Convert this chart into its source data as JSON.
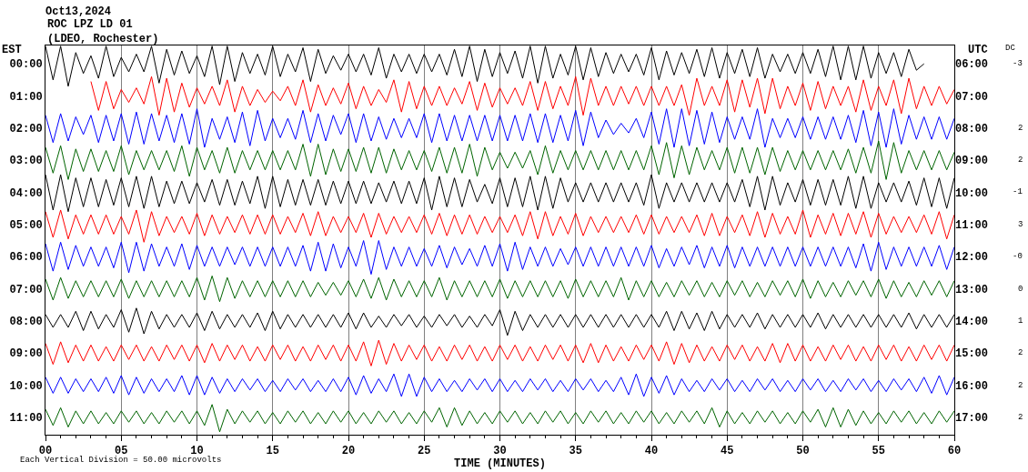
{
  "chart_data": {
    "type": "line",
    "title": "Oct13,2024",
    "subtitle": "ROC LPZ LD 01\n(LDEO, Rochester)",
    "xlabel": "TIME (MINUTES)",
    "ylabel": "EST",
    "y2label": "UTC",
    "annotations": [
      "Each Vertical Division = 50.00 microvolts",
      "DC",
      "-3",
      "2",
      "2",
      "-1",
      "3",
      "-0",
      "0",
      "1",
      "2",
      "2",
      "2"
    ],
    "x": [
      0,
      0.5,
      1,
      1.5,
      2,
      2.5,
      3,
      3.5,
      4,
      4.5,
      5,
      5.5,
      6,
      6.5,
      7,
      7.5,
      8,
      8.5,
      9,
      9.5,
      10,
      10.5,
      11,
      11.5,
      12,
      12.5,
      13,
      13.5,
      14,
      14.5,
      15,
      15.5,
      16,
      16.5,
      17,
      17.5,
      18,
      18.5,
      19,
      19.5,
      20,
      20.5,
      21,
      21.5,
      22,
      22.5,
      23,
      23.5,
      24,
      24.5,
      25,
      25.5,
      26,
      26.5,
      27,
      27.5,
      28,
      28.5,
      29,
      29.5,
      30,
      30.5,
      31,
      31.5,
      32,
      32.5,
      33,
      33.5,
      34,
      34.5,
      35,
      35.5,
      36,
      36.5,
      37,
      37.5,
      38,
      38.5,
      39,
      39.5,
      40,
      40.5,
      41,
      41.5,
      42,
      42.5,
      43,
      43.5,
      44,
      44.5,
      45,
      45.5,
      46,
      46.5,
      47,
      47.5,
      48,
      48.5,
      49,
      49.5,
      50,
      50.5,
      51,
      51.5,
      52,
      52.5,
      53,
      53.5,
      54,
      54.5,
      55,
      55.5,
      56,
      56.5,
      57,
      57.5,
      58,
      58.5,
      59,
      59.5,
      60
    ],
    "series": [
      {
        "color": "#000000",
        "values": [
          -0.55,
          0.5,
          -0.55,
          0.7,
          -0.35,
          0.3,
          -0.25,
          0.45,
          -0.55,
          0.4,
          -0.2,
          0.25,
          -0.3,
          0.25,
          -0.55,
          0.6,
          -0.45,
          0.35,
          -0.4,
          0.3,
          -0.25,
          0.4,
          -0.55,
          0.65,
          -0.55,
          0.55,
          -0.35,
          0.3,
          -0.3,
          0.35,
          -0.55,
          0.4,
          -0.3,
          0.25,
          -0.5,
          0.55,
          -0.45,
          0.3,
          -0.25,
          0.2,
          -0.3,
          0.25,
          -0.3,
          0.35,
          -0.5,
          0.45,
          -0.3,
          0.25,
          -0.3,
          0.3,
          -0.3,
          0.25,
          -0.3,
          0.35,
          -0.45,
          0.4,
          -0.55,
          0.55,
          -0.45,
          0.4,
          -0.35,
          0.3,
          -0.4,
          0.45,
          -0.55,
          0.6,
          -0.55,
          0.45,
          -0.3,
          0.35,
          -0.55,
          0.5,
          -0.5,
          0.4,
          -0.35,
          0.3,
          -0.3,
          0.25,
          -0.3,
          0.35,
          -0.5,
          0.5,
          -0.4,
          0.35,
          -0.35,
          0.3,
          -0.45,
          0.4,
          -0.5,
          0.45,
          -0.35,
          0.3,
          -0.45,
          0.4,
          -0.5,
          0.45,
          -0.3,
          0.25,
          -0.3,
          0.3,
          -0.35,
          0.3,
          -0.45,
          0.4,
          -0.55,
          0.5,
          -0.55,
          0.5,
          -0.55,
          0.45,
          -0.35,
          0.3,
          -0.35,
          0.4,
          -0.45,
          0.2,
          0.0,
          null,
          null,
          null,
          null
        ]
      },
      {
        "color": "#ff0000",
        "values": [
          null,
          null,
          null,
          null,
          null,
          null,
          0.55,
          1.45,
          0.55,
          1.4,
          0.8,
          1.2,
          0.75,
          1.25,
          0.4,
          1.6,
          0.45,
          1.5,
          0.6,
          1.35,
          0.75,
          1.25,
          0.7,
          1.3,
          0.5,
          1.5,
          0.7,
          1.3,
          0.8,
          1.2,
          0.85,
          1.15,
          0.7,
          1.3,
          0.5,
          1.5,
          0.65,
          1.3,
          0.75,
          1.25,
          0.6,
          1.4,
          0.7,
          1.3,
          0.8,
          1.2,
          0.5,
          1.5,
          0.55,
          1.4,
          0.7,
          1.3,
          0.7,
          1.3,
          0.75,
          1.25,
          0.55,
          1.45,
          0.6,
          1.35,
          0.75,
          1.25,
          0.75,
          1.3,
          0.55,
          1.45,
          0.55,
          1.4,
          0.7,
          1.3,
          0.4,
          1.6,
          0.45,
          1.3,
          0.7,
          1.3,
          0.7,
          1.25,
          0.7,
          1.3,
          0.7,
          1.3,
          0.7,
          1.3,
          0.65,
          1.6,
          0.45,
          1.3,
          0.7,
          1.3,
          0.5,
          1.5,
          0.5,
          1.35,
          0.45,
          1.55,
          0.45,
          1.4,
          0.7,
          1.3,
          0.6,
          1.45,
          0.55,
          1.4,
          0.7,
          1.3,
          0.7,
          1.5,
          0.5,
          1.45,
          0.7,
          1.3,
          0.5,
          1.55,
          0.45,
          1.4,
          0.7,
          1.3,
          0.7,
          1.25,
          0.8
        ]
      },
      {
        "color": "#0000ff",
        "values": [
          1.6,
          2.45,
          1.55,
          2.4,
          1.65,
          2.2,
          1.6,
          2.45,
          1.6,
          2.4,
          1.55,
          2.5,
          1.5,
          2.5,
          1.55,
          2.4,
          1.6,
          2.45,
          1.55,
          2.5,
          1.4,
          2.6,
          1.7,
          2.35,
          1.65,
          2.45,
          1.5,
          2.55,
          1.45,
          2.4,
          1.7,
          2.3,
          1.7,
          2.35,
          1.45,
          2.45,
          1.55,
          2.4,
          1.6,
          2.2,
          1.55,
          2.45,
          1.55,
          2.4,
          1.65,
          2.35,
          1.7,
          2.3,
          1.7,
          2.3,
          1.55,
          2.45,
          1.55,
          2.4,
          1.6,
          2.4,
          1.6,
          2.4,
          1.6,
          2.4,
          1.6,
          2.4,
          1.6,
          2.4,
          1.55,
          2.45,
          1.55,
          2.45,
          1.6,
          2.4,
          1.45,
          2.55,
          1.5,
          2.3,
          1.75,
          2.2,
          1.85,
          2.15,
          1.7,
          2.3,
          1.5,
          2.5,
          1.4,
          2.6,
          1.4,
          2.55,
          1.45,
          2.5,
          1.5,
          2.45,
          1.65,
          2.35,
          1.65,
          2.35,
          1.4,
          2.6,
          1.7,
          2.3,
          1.7,
          2.3,
          1.65,
          2.35,
          1.65,
          2.35,
          1.65,
          2.35,
          1.6,
          2.45,
          1.45,
          2.55,
          1.5,
          2.6,
          1.4,
          2.5,
          1.6,
          2.35,
          1.65,
          2.35,
          1.65,
          2.35,
          1.7
        ]
      },
      {
        "color": "#006400",
        "values": [
          2.6,
          3.4,
          2.55,
          3.6,
          2.65,
          3.35,
          2.65,
          3.35,
          2.7,
          3.35,
          2.55,
          3.45,
          2.7,
          3.3,
          2.7,
          3.3,
          2.7,
          3.35,
          2.55,
          3.5,
          2.6,
          3.3,
          2.7,
          3.4,
          2.6,
          3.4,
          2.7,
          3.3,
          2.7,
          3.3,
          2.7,
          3.3,
          2.7,
          3.3,
          2.5,
          3.5,
          2.5,
          3.45,
          2.65,
          3.35,
          2.65,
          3.35,
          2.6,
          3.4,
          2.6,
          3.4,
          2.65,
          3.3,
          2.7,
          3.3,
          2.7,
          3.35,
          2.6,
          3.4,
          2.6,
          3.4,
          2.5,
          3.5,
          2.6,
          3.3,
          2.75,
          3.25,
          2.75,
          3.25,
          2.7,
          3.45,
          2.55,
          3.4,
          2.7,
          3.3,
          2.7,
          3.3,
          2.7,
          3.3,
          2.7,
          3.3,
          2.7,
          3.3,
          2.7,
          3.3,
          2.55,
          3.45,
          2.45,
          3.55,
          2.55,
          3.45,
          2.6,
          3.3,
          2.7,
          3.3,
          2.6,
          3.4,
          2.6,
          3.4,
          2.6,
          3.45,
          2.6,
          3.35,
          2.7,
          3.3,
          2.7,
          3.3,
          2.7,
          3.3,
          2.7,
          3.3,
          2.65,
          3.4,
          2.6,
          3.4,
          2.4,
          3.6,
          2.45,
          3.4,
          2.7,
          3.3,
          2.7,
          3.3,
          2.7,
          3.3,
          2.75
        ]
      },
      {
        "color": "#000000",
        "values": [
          3.45,
          4.55,
          3.45,
          4.6,
          3.55,
          4.45,
          3.55,
          4.45,
          3.6,
          4.4,
          3.55,
          4.45,
          3.5,
          4.5,
          3.5,
          4.45,
          3.65,
          4.35,
          3.65,
          4.35,
          3.7,
          4.3,
          3.6,
          4.4,
          3.6,
          4.4,
          3.65,
          4.35,
          3.5,
          4.5,
          3.5,
          4.45,
          3.6,
          4.4,
          3.6,
          4.4,
          3.6,
          4.4,
          3.65,
          4.35,
          3.65,
          4.35,
          3.65,
          4.35,
          3.7,
          4.3,
          3.65,
          4.35,
          3.65,
          4.35,
          3.55,
          4.55,
          3.5,
          4.45,
          3.55,
          4.45,
          3.6,
          4.3,
          3.75,
          4.35,
          3.55,
          4.45,
          3.55,
          4.45,
          3.5,
          4.55,
          3.5,
          4.5,
          3.55,
          4.3,
          3.7,
          4.3,
          3.7,
          4.3,
          3.7,
          4.3,
          3.7,
          4.3,
          3.7,
          4.4,
          3.45,
          4.5,
          3.7,
          4.3,
          3.7,
          4.3,
          3.7,
          4.3,
          3.7,
          4.3,
          3.7,
          4.3,
          3.6,
          4.45,
          3.5,
          4.55,
          3.5,
          4.4,
          3.7,
          4.3,
          3.6,
          4.4,
          3.6,
          4.4,
          3.6,
          4.4,
          3.5,
          4.5,
          3.5,
          4.5,
          3.7,
          4.3,
          3.7,
          4.3,
          3.65,
          4.4,
          3.55,
          4.45,
          3.55,
          4.5,
          3.55
        ]
      },
      {
        "color": "#ff0000",
        "values": [
          4.6,
          5.4,
          4.55,
          5.45,
          4.7,
          5.3,
          4.7,
          5.3,
          4.7,
          5.3,
          4.75,
          5.3,
          4.55,
          5.55,
          4.6,
          5.35,
          4.75,
          5.25,
          4.75,
          5.3,
          4.65,
          5.35,
          4.7,
          5.3,
          4.75,
          5.25,
          4.7,
          5.3,
          4.7,
          5.3,
          4.7,
          5.3,
          4.75,
          5.25,
          4.65,
          5.35,
          4.6,
          5.35,
          4.75,
          5.25,
          4.75,
          5.25,
          4.65,
          5.4,
          4.65,
          5.3,
          4.75,
          5.25,
          4.75,
          5.25,
          4.7,
          5.3,
          4.65,
          5.35,
          4.7,
          5.3,
          4.7,
          5.3,
          4.75,
          5.25,
          4.75,
          5.25,
          4.7,
          5.35,
          4.6,
          5.45,
          4.6,
          5.35,
          4.75,
          5.3,
          4.65,
          5.35,
          4.75,
          5.25,
          4.75,
          5.25,
          4.75,
          5.25,
          4.7,
          5.3,
          4.7,
          5.3,
          4.75,
          5.25,
          4.75,
          5.25,
          4.7,
          5.35,
          4.65,
          5.35,
          4.75,
          5.25,
          4.7,
          5.35,
          4.6,
          5.4,
          4.65,
          5.3,
          4.75,
          5.3,
          4.55,
          5.4,
          4.7,
          5.3,
          4.65,
          5.35,
          4.65,
          5.3,
          4.6,
          5.4,
          4.65,
          5.3,
          4.75,
          5.25,
          4.75,
          5.25,
          4.7,
          5.3,
          4.6,
          5.45,
          4.7
        ]
      },
      {
        "color": "#0000ff",
        "values": [
          5.6,
          6.45,
          5.55,
          6.4,
          5.65,
          6.3,
          5.7,
          6.3,
          5.7,
          6.35,
          5.55,
          6.5,
          5.55,
          6.45,
          5.6,
          6.3,
          5.7,
          6.3,
          5.6,
          6.4,
          5.65,
          6.3,
          5.7,
          6.3,
          5.7,
          6.25,
          5.7,
          6.3,
          5.7,
          6.3,
          5.7,
          6.3,
          5.7,
          6.3,
          5.65,
          6.45,
          5.55,
          6.45,
          5.6,
          6.35,
          5.7,
          6.3,
          5.5,
          6.55,
          5.5,
          6.4,
          5.7,
          6.3,
          5.7,
          6.3,
          5.75,
          6.3,
          5.65,
          6.35,
          5.7,
          6.25,
          5.75,
          6.3,
          5.65,
          6.3,
          5.6,
          6.45,
          5.55,
          6.4,
          5.7,
          6.3,
          5.7,
          6.3,
          5.75,
          6.25,
          5.7,
          6.3,
          5.7,
          6.3,
          5.7,
          6.3,
          5.7,
          6.3,
          5.7,
          6.3,
          5.65,
          6.35,
          5.75,
          6.3,
          5.7,
          6.25,
          5.65,
          6.35,
          5.7,
          6.3,
          5.65,
          6.35,
          5.7,
          6.3,
          5.7,
          6.3,
          5.7,
          6.3,
          5.7,
          6.3,
          5.7,
          6.3,
          5.7,
          6.3,
          5.7,
          6.3,
          5.7,
          6.35,
          5.6,
          6.45,
          5.55,
          6.4,
          5.7,
          6.3,
          5.7,
          6.3,
          5.7,
          6.3,
          5.65,
          6.4,
          5.7
        ]
      },
      {
        "color": "#006400",
        "values": [
          6.7,
          7.35,
          6.65,
          7.3,
          6.75,
          7.25,
          6.75,
          7.25,
          6.75,
          7.25,
          6.7,
          7.3,
          6.75,
          7.25,
          6.75,
          7.25,
          6.75,
          7.25,
          6.75,
          7.25,
          6.65,
          7.35,
          6.6,
          7.4,
          6.65,
          7.3,
          6.75,
          7.25,
          6.75,
          7.25,
          6.75,
          7.25,
          6.75,
          7.25,
          6.75,
          7.25,
          6.8,
          7.2,
          6.8,
          7.2,
          6.75,
          7.25,
          6.7,
          7.3,
          6.65,
          7.35,
          6.7,
          7.25,
          6.75,
          7.25,
          6.75,
          7.25,
          6.65,
          7.35,
          6.75,
          7.25,
          6.75,
          7.25,
          6.75,
          7.25,
          6.7,
          7.3,
          6.75,
          7.25,
          6.75,
          7.25,
          6.75,
          7.25,
          6.75,
          7.3,
          6.7,
          7.25,
          6.75,
          7.25,
          6.75,
          7.25,
          6.65,
          7.35,
          6.75,
          7.25,
          6.75,
          7.25,
          6.8,
          7.25,
          6.75,
          7.2,
          6.75,
          7.25,
          6.8,
          7.25,
          6.75,
          7.2,
          6.75,
          7.25,
          6.8,
          7.25,
          6.75,
          7.2,
          6.75,
          7.25,
          6.7,
          7.3,
          6.75,
          7.25,
          6.8,
          7.25,
          6.75,
          7.2,
          6.75,
          7.25,
          6.7,
          7.3,
          6.75,
          7.25,
          6.8,
          7.25,
          6.75,
          7.2,
          6.75,
          7.25,
          6.75
        ]
      },
      {
        "color": "#000000",
        "values": [
          7.8,
          8.2,
          7.8,
          8.2,
          7.7,
          8.3,
          7.7,
          8.25,
          7.8,
          8.2,
          7.65,
          8.35,
          7.6,
          8.4,
          7.7,
          8.25,
          7.8,
          8.2,
          7.8,
          8.2,
          7.75,
          8.3,
          7.7,
          8.25,
          7.8,
          8.2,
          7.8,
          8.2,
          7.75,
          8.3,
          7.7,
          8.25,
          7.8,
          8.2,
          7.8,
          8.2,
          7.8,
          8.2,
          7.8,
          8.2,
          7.75,
          8.25,
          7.75,
          8.2,
          7.85,
          8.2,
          7.8,
          8.15,
          7.8,
          8.2,
          7.85,
          8.2,
          7.8,
          8.15,
          7.8,
          8.2,
          7.85,
          8.2,
          7.8,
          8.15,
          7.65,
          8.45,
          7.7,
          8.3,
          7.8,
          8.2,
          7.8,
          8.2,
          7.8,
          8.2,
          7.8,
          8.2,
          7.8,
          8.2,
          7.8,
          8.2,
          7.8,
          8.2,
          7.8,
          8.2,
          7.8,
          8.2,
          7.7,
          8.3,
          7.7,
          8.25,
          7.75,
          8.3,
          7.7,
          8.25,
          7.8,
          8.2,
          7.8,
          8.2,
          7.75,
          8.25,
          7.8,
          8.2,
          7.8,
          8.2,
          7.8,
          8.2,
          7.75,
          8.25,
          7.8,
          8.2,
          7.8,
          8.2,
          7.8,
          8.2,
          7.8,
          8.2,
          7.8,
          8.2,
          7.75,
          8.25,
          7.8,
          8.2,
          7.8,
          8.2,
          7.8
        ]
      },
      {
        "color": "#ff0000",
        "values": [
          8.7,
          9.35,
          8.65,
          9.3,
          8.75,
          9.25,
          8.75,
          9.25,
          8.8,
          9.25,
          8.75,
          9.2,
          8.75,
          9.25,
          8.8,
          9.25,
          8.75,
          9.2,
          8.75,
          9.25,
          8.75,
          9.3,
          8.7,
          9.25,
          8.75,
          9.2,
          8.75,
          9.25,
          8.8,
          9.25,
          8.75,
          9.2,
          8.75,
          9.25,
          8.8,
          9.25,
          8.75,
          9.2,
          8.75,
          9.25,
          8.75,
          9.25,
          8.65,
          9.4,
          8.6,
          9.35,
          8.7,
          9.25,
          8.75,
          9.2,
          8.75,
          9.25,
          8.8,
          9.25,
          8.75,
          9.2,
          8.75,
          9.25,
          8.8,
          9.25,
          8.75,
          9.2,
          8.75,
          9.25,
          8.8,
          9.25,
          8.75,
          9.2,
          8.75,
          9.25,
          8.75,
          9.3,
          8.7,
          9.3,
          8.75,
          9.25,
          8.8,
          9.25,
          8.75,
          9.2,
          8.75,
          9.25,
          8.65,
          9.35,
          8.7,
          9.3,
          8.75,
          9.25,
          8.8,
          9.25,
          8.75,
          9.2,
          8.75,
          9.25,
          8.8,
          9.25,
          8.7,
          9.3,
          8.7,
          9.25,
          8.75,
          9.25,
          8.8,
          9.25,
          8.75,
          9.2,
          8.75,
          9.25,
          8.8,
          9.25,
          8.75,
          9.2,
          8.75,
          9.25,
          8.8,
          9.25,
          8.75,
          9.2,
          8.75,
          9.25,
          8.75
        ]
      },
      {
        "color": "#0000ff",
        "values": [
          9.75,
          10.25,
          9.75,
          10.25,
          9.8,
          10.2,
          9.8,
          10.2,
          9.75,
          10.25,
          9.7,
          10.3,
          9.75,
          10.25,
          9.8,
          10.2,
          9.8,
          10.2,
          9.7,
          10.3,
          9.7,
          10.3,
          9.75,
          10.25,
          9.8,
          10.2,
          9.8,
          10.15,
          9.8,
          10.2,
          9.85,
          10.2,
          9.8,
          10.15,
          9.8,
          10.2,
          9.85,
          10.2,
          9.8,
          10.2,
          9.75,
          10.3,
          9.7,
          10.25,
          9.8,
          10.2,
          9.65,
          10.35,
          9.65,
          10.35,
          9.75,
          10.2,
          9.8,
          10.2,
          9.85,
          10.2,
          9.8,
          10.15,
          9.8,
          10.2,
          9.8,
          10.2,
          9.85,
          10.2,
          9.8,
          10.15,
          9.8,
          10.2,
          9.85,
          10.2,
          9.8,
          10.15,
          9.8,
          10.2,
          9.85,
          10.2,
          9.75,
          10.3,
          9.65,
          10.35,
          9.75,
          10.25,
          9.7,
          10.3,
          9.8,
          10.2,
          9.85,
          10.2,
          9.8,
          10.15,
          9.8,
          10.2,
          9.85,
          10.2,
          9.8,
          10.15,
          9.8,
          10.2,
          9.85,
          10.2,
          9.8,
          10.15,
          9.8,
          10.2,
          9.85,
          10.2,
          9.8,
          10.15,
          9.8,
          10.2,
          9.85,
          10.2,
          9.8,
          10.15,
          9.8,
          10.2,
          9.75,
          10.25,
          9.7,
          10.3,
          9.75
        ]
      },
      {
        "color": "#006400",
        "values": [
          10.75,
          11.25,
          10.7,
          11.3,
          10.8,
          11.2,
          10.8,
          11.2,
          10.85,
          11.2,
          10.8,
          11.15,
          10.8,
          11.2,
          10.85,
          11.2,
          10.8,
          11.15,
          10.8,
          11.2,
          10.8,
          11.25,
          10.6,
          11.45,
          10.75,
          11.2,
          10.8,
          11.15,
          10.8,
          11.2,
          10.85,
          11.2,
          10.8,
          11.15,
          10.8,
          11.2,
          10.85,
          11.2,
          10.8,
          11.15,
          10.8,
          11.2,
          10.85,
          11.2,
          10.8,
          11.15,
          10.8,
          11.2,
          10.85,
          11.2,
          10.8,
          11.15,
          10.7,
          11.3,
          10.7,
          11.25,
          10.8,
          11.2,
          10.85,
          11.2,
          10.8,
          11.15,
          10.8,
          11.2,
          10.85,
          11.2,
          10.8,
          11.15,
          10.8,
          11.2,
          10.85,
          11.2,
          10.8,
          11.15,
          10.8,
          11.2,
          10.85,
          11.2,
          10.8,
          11.15,
          10.8,
          11.2,
          10.85,
          11.2,
          10.8,
          11.15,
          10.8,
          11.2,
          10.7,
          11.3,
          10.8,
          11.2,
          10.85,
          11.2,
          10.8,
          11.15,
          10.8,
          11.2,
          10.85,
          11.2,
          10.8,
          11.15,
          10.75,
          11.3,
          10.7,
          11.3,
          10.75,
          11.25,
          10.8,
          11.2,
          10.85,
          11.2,
          10.8,
          11.15,
          10.8,
          11.2,
          10.85,
          11.2,
          10.8,
          11.15,
          10.8
        ]
      }
    ],
    "xlim": [
      0,
      60
    ],
    "xticks": [
      {
        "value": 0,
        "label": "00"
      },
      {
        "value": 1,
        "label": null
      },
      {
        "value": 2,
        "label": null
      },
      {
        "value": 3,
        "label": null
      },
      {
        "value": 4,
        "label": null
      },
      {
        "value": 5,
        "label": "05"
      },
      {
        "value": 6,
        "label": null
      },
      {
        "value": 7,
        "label": null
      },
      {
        "value": 8,
        "label": null
      },
      {
        "value": 9,
        "label": null
      },
      {
        "value": 10,
        "label": "10"
      },
      {
        "value": 11,
        "label": null
      },
      {
        "value": 12,
        "label": null
      },
      {
        "value": 13,
        "label": null
      },
      {
        "value": 14,
        "label": null
      },
      {
        "value": 15,
        "label": "15"
      },
      {
        "value": 16,
        "label": null
      },
      {
        "value": 17,
        "label": null
      },
      {
        "value": 18,
        "label": null
      },
      {
        "value": 19,
        "label": null
      },
      {
        "value": 20,
        "label": "20"
      },
      {
        "value": 21,
        "label": null
      },
      {
        "value": 22,
        "label": null
      },
      {
        "value": 23,
        "label": null
      },
      {
        "value": 24,
        "label": null
      },
      {
        "value": 25,
        "label": "25"
      },
      {
        "value": 26,
        "label": null
      },
      {
        "value": 27,
        "label": null
      },
      {
        "value": 28,
        "label": null
      },
      {
        "value": 29,
        "label": null
      },
      {
        "value": 30,
        "label": "30"
      },
      {
        "value": 31,
        "label": null
      },
      {
        "value": 32,
        "label": null
      },
      {
        "value": 33,
        "label": null
      },
      {
        "value": 34,
        "label": null
      },
      {
        "value": 35,
        "label": "35"
      },
      {
        "value": 36,
        "label": null
      },
      {
        "value": 37,
        "label": null
      },
      {
        "value": 38,
        "label": null
      },
      {
        "value": 39,
        "label": null
      },
      {
        "value": 40,
        "label": "40"
      },
      {
        "value": 41,
        "label": null
      },
      {
        "value": 42,
        "label": null
      },
      {
        "value": 43,
        "label": null
      },
      {
        "value": 44,
        "label": null
      },
      {
        "value": 45,
        "label": "45"
      },
      {
        "value": 46,
        "label": null
      },
      {
        "value": 47,
        "label": null
      },
      {
        "value": 48,
        "label": null
      },
      {
        "value": 49,
        "label": null
      },
      {
        "value": 50,
        "label": "50"
      },
      {
        "value": 51,
        "label": null
      },
      {
        "value": 52,
        "label": null
      },
      {
        "value": 53,
        "label": null
      },
      {
        "value": 54,
        "label": null
      },
      {
        "value": 55,
        "label": "55"
      },
      {
        "value": 56,
        "label": null
      },
      {
        "value": 57,
        "label": null
      },
      {
        "value": 58,
        "label": null
      },
      {
        "value": 59,
        "label": null
      },
      {
        "value": 60,
        "label": "60"
      }
    ],
    "ylim": [
      11.54,
      -0.57
    ],
    "yticks": [
      {
        "value": 0,
        "label": "00:00"
      },
      {
        "value": 1,
        "label": "01:00"
      },
      {
        "value": 2,
        "label": "02:00"
      },
      {
        "value": 3,
        "label": "03:00"
      },
      {
        "value": 4,
        "label": "04:00"
      },
      {
        "value": 5,
        "label": "05:00"
      },
      {
        "value": 6,
        "label": "06:00"
      },
      {
        "value": 7,
        "label": "07:00"
      },
      {
        "value": 8,
        "label": "08:00"
      },
      {
        "value": 9,
        "label": "09:00"
      },
      {
        "value": 10,
        "label": "10:00"
      },
      {
        "value": 11,
        "label": "11:00"
      }
    ],
    "y2lim": [
      17.54,
      5.43
    ],
    "y2ticks": [
      {
        "value": 6,
        "label": "06:00"
      },
      {
        "value": 7,
        "label": "07:00"
      },
      {
        "value": 8,
        "label": "08:00"
      },
      {
        "value": 9,
        "label": "09:00"
      },
      {
        "value": 10,
        "label": "10:00"
      },
      {
        "value": 11,
        "label": "11:00"
      },
      {
        "value": 12,
        "label": "12:00"
      },
      {
        "value": 13,
        "label": "13:00"
      },
      {
        "value": 14,
        "label": "14:00"
      },
      {
        "value": 15,
        "label": "15:00"
      },
      {
        "value": 16,
        "label": "16:00"
      },
      {
        "value": 17,
        "label": "17:00"
      }
    ],
    "grid": "x"
  }
}
